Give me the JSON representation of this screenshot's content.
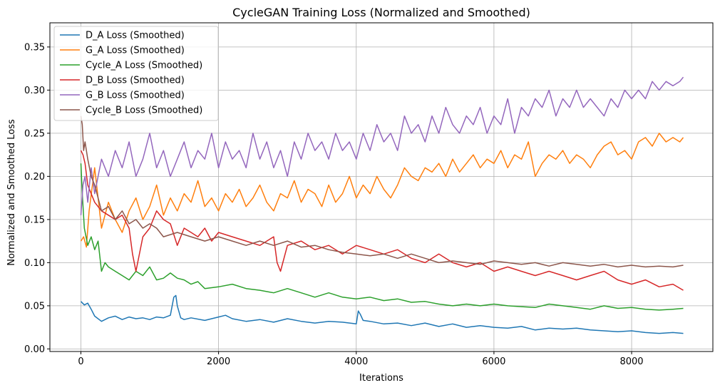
{
  "chart_data": {
    "type": "line",
    "title": "CycleGAN Training Loss (Normalized and Smoothed)",
    "xlabel": "Iterations",
    "ylabel": "Normalized and Smoothed Loss",
    "xlim": [
      -450,
      9180
    ],
    "ylim": [
      -0.003,
      0.378
    ],
    "x_ticks": [
      0,
      2000,
      4000,
      6000,
      8000
    ],
    "y_ticks": [
      0.0,
      0.05,
      0.1,
      0.15,
      0.2,
      0.25,
      0.3,
      0.35
    ],
    "x_tick_labels": [
      "0",
      "2000",
      "4000",
      "6000",
      "8000"
    ],
    "y_tick_labels": [
      "0.00",
      "0.05",
      "0.10",
      "0.15",
      "0.20",
      "0.25",
      "0.30",
      "0.35"
    ],
    "grid": true,
    "legend_position": "top-left",
    "series": [
      {
        "name": "D_A Loss (Smoothed)",
        "color": "#1f77b4",
        "x": [
          0,
          50,
          100,
          150,
          200,
          300,
          400,
          500,
          600,
          700,
          800,
          900,
          1000,
          1100,
          1200,
          1300,
          1350,
          1380,
          1400,
          1450,
          1500,
          1600,
          1800,
          2000,
          2100,
          2200,
          2400,
          2600,
          2800,
          3000,
          3200,
          3400,
          3600,
          3800,
          4000,
          4030,
          4060,
          4100,
          4200,
          4400,
          4600,
          4800,
          5000,
          5200,
          5400,
          5600,
          5800,
          6000,
          6200,
          6400,
          6600,
          6800,
          7000,
          7200,
          7400,
          7600,
          7800,
          8000,
          8200,
          8400,
          8600,
          8750
        ],
        "y": [
          0.055,
          0.051,
          0.053,
          0.046,
          0.038,
          0.032,
          0.036,
          0.038,
          0.034,
          0.037,
          0.035,
          0.036,
          0.034,
          0.037,
          0.036,
          0.039,
          0.06,
          0.062,
          0.05,
          0.036,
          0.034,
          0.036,
          0.033,
          0.037,
          0.039,
          0.035,
          0.032,
          0.034,
          0.031,
          0.035,
          0.032,
          0.03,
          0.032,
          0.031,
          0.029,
          0.044,
          0.04,
          0.033,
          0.032,
          0.029,
          0.03,
          0.027,
          0.03,
          0.026,
          0.029,
          0.025,
          0.027,
          0.025,
          0.024,
          0.026,
          0.022,
          0.024,
          0.023,
          0.024,
          0.022,
          0.021,
          0.02,
          0.021,
          0.019,
          0.018,
          0.019,
          0.018
        ]
      },
      {
        "name": "G_A Loss (Smoothed)",
        "color": "#ff7f0e",
        "x": [
          0,
          40,
          80,
          120,
          200,
          300,
          400,
          500,
          600,
          700,
          800,
          900,
          1000,
          1100,
          1200,
          1300,
          1400,
          1500,
          1600,
          1700,
          1800,
          1900,
          2000,
          2100,
          2200,
          2300,
          2400,
          2500,
          2600,
          2700,
          2800,
          2900,
          3000,
          3100,
          3200,
          3300,
          3400,
          3500,
          3600,
          3700,
          3800,
          3900,
          4000,
          4100,
          4200,
          4300,
          4400,
          4500,
          4600,
          4700,
          4800,
          4900,
          5000,
          5100,
          5200,
          5300,
          5400,
          5500,
          5600,
          5700,
          5800,
          5900,
          6000,
          6100,
          6200,
          6300,
          6400,
          6500,
          6600,
          6700,
          6800,
          6900,
          7000,
          7100,
          7200,
          7300,
          7400,
          7500,
          7600,
          7700,
          7800,
          7900,
          8000,
          8100,
          8200,
          8300,
          8400,
          8500,
          8600,
          8700,
          8750
        ],
        "y": [
          0.125,
          0.13,
          0.118,
          0.16,
          0.21,
          0.14,
          0.17,
          0.15,
          0.135,
          0.16,
          0.175,
          0.15,
          0.165,
          0.19,
          0.155,
          0.175,
          0.16,
          0.18,
          0.17,
          0.195,
          0.165,
          0.175,
          0.16,
          0.18,
          0.17,
          0.185,
          0.165,
          0.175,
          0.19,
          0.17,
          0.16,
          0.18,
          0.175,
          0.195,
          0.17,
          0.185,
          0.18,
          0.165,
          0.19,
          0.17,
          0.18,
          0.2,
          0.175,
          0.19,
          0.18,
          0.2,
          0.185,
          0.175,
          0.19,
          0.21,
          0.2,
          0.195,
          0.21,
          0.205,
          0.215,
          0.2,
          0.22,
          0.205,
          0.215,
          0.225,
          0.21,
          0.22,
          0.215,
          0.23,
          0.21,
          0.225,
          0.22,
          0.24,
          0.2,
          0.215,
          0.225,
          0.22,
          0.23,
          0.215,
          0.225,
          0.22,
          0.21,
          0.225,
          0.235,
          0.24,
          0.225,
          0.23,
          0.22,
          0.24,
          0.245,
          0.235,
          0.25,
          0.24,
          0.245,
          0.24,
          0.245
        ]
      },
      {
        "name": "Cycle_A Loss (Smoothed)",
        "color": "#2ca02c",
        "x": [
          0,
          20,
          50,
          100,
          150,
          200,
          250,
          300,
          350,
          400,
          500,
          600,
          700,
          800,
          900,
          1000,
          1100,
          1200,
          1300,
          1400,
          1500,
          1600,
          1700,
          1800,
          2000,
          2200,
          2400,
          2600,
          2800,
          3000,
          3200,
          3400,
          3600,
          3800,
          4000,
          4200,
          4400,
          4600,
          4800,
          5000,
          5200,
          5400,
          5600,
          5800,
          6000,
          6200,
          6400,
          6600,
          6800,
          7000,
          7200,
          7400,
          7600,
          7800,
          8000,
          8200,
          8400,
          8600,
          8750
        ],
        "y": [
          0.215,
          0.18,
          0.14,
          0.12,
          0.13,
          0.115,
          0.125,
          0.09,
          0.1,
          0.095,
          0.09,
          0.085,
          0.08,
          0.09,
          0.085,
          0.095,
          0.08,
          0.082,
          0.088,
          0.082,
          0.08,
          0.075,
          0.078,
          0.07,
          0.072,
          0.075,
          0.07,
          0.068,
          0.065,
          0.07,
          0.065,
          0.06,
          0.065,
          0.06,
          0.058,
          0.06,
          0.056,
          0.058,
          0.054,
          0.055,
          0.052,
          0.05,
          0.052,
          0.05,
          0.052,
          0.05,
          0.049,
          0.048,
          0.052,
          0.05,
          0.048,
          0.046,
          0.05,
          0.047,
          0.048,
          0.046,
          0.045,
          0.046,
          0.047
        ]
      },
      {
        "name": "D_B Loss (Smoothed)",
        "color": "#d62728",
        "x": [
          0,
          30,
          60,
          100,
          150,
          200,
          300,
          400,
          500,
          600,
          700,
          750,
          800,
          900,
          1000,
          1100,
          1200,
          1300,
          1400,
          1500,
          1600,
          1700,
          1800,
          1900,
          2000,
          2200,
          2400,
          2600,
          2800,
          2850,
          2900,
          3000,
          3200,
          3400,
          3600,
          3800,
          4000,
          4200,
          4400,
          4600,
          4800,
          5000,
          5200,
          5400,
          5600,
          5800,
          6000,
          6200,
          6400,
          6600,
          6800,
          7000,
          7200,
          7400,
          7600,
          7800,
          8000,
          8200,
          8400,
          8600,
          8750
        ],
        "y": [
          0.23,
          0.225,
          0.215,
          0.19,
          0.18,
          0.17,
          0.16,
          0.155,
          0.15,
          0.155,
          0.14,
          0.11,
          0.09,
          0.13,
          0.14,
          0.16,
          0.15,
          0.145,
          0.12,
          0.14,
          0.135,
          0.13,
          0.14,
          0.125,
          0.135,
          0.13,
          0.125,
          0.12,
          0.13,
          0.1,
          0.09,
          0.12,
          0.125,
          0.115,
          0.12,
          0.11,
          0.12,
          0.115,
          0.11,
          0.115,
          0.105,
          0.1,
          0.11,
          0.1,
          0.095,
          0.1,
          0.09,
          0.095,
          0.09,
          0.085,
          0.09,
          0.085,
          0.08,
          0.085,
          0.09,
          0.08,
          0.075,
          0.08,
          0.072,
          0.075,
          0.068
        ]
      },
      {
        "name": "G_B Loss (Smoothed)",
        "color": "#9467bd",
        "x": [
          0,
          30,
          60,
          100,
          150,
          200,
          300,
          400,
          500,
          600,
          700,
          800,
          900,
          1000,
          1100,
          1200,
          1300,
          1400,
          1500,
          1600,
          1700,
          1800,
          1900,
          2000,
          2100,
          2200,
          2300,
          2400,
          2500,
          2600,
          2700,
          2800,
          2900,
          3000,
          3100,
          3200,
          3300,
          3400,
          3500,
          3600,
          3700,
          3800,
          3900,
          4000,
          4100,
          4200,
          4300,
          4400,
          4500,
          4600,
          4700,
          4800,
          4900,
          5000,
          5100,
          5200,
          5300,
          5400,
          5500,
          5600,
          5700,
          5800,
          5900,
          6000,
          6100,
          6200,
          6300,
          6400,
          6500,
          6600,
          6700,
          6800,
          6900,
          7000,
          7100,
          7200,
          7300,
          7400,
          7500,
          7600,
          7700,
          7800,
          7900,
          8000,
          8100,
          8200,
          8300,
          8400,
          8500,
          8600,
          8700,
          8750
        ],
        "y": [
          0.155,
          0.19,
          0.2,
          0.17,
          0.21,
          0.18,
          0.22,
          0.2,
          0.23,
          0.21,
          0.24,
          0.2,
          0.22,
          0.25,
          0.21,
          0.23,
          0.2,
          0.22,
          0.24,
          0.21,
          0.23,
          0.22,
          0.25,
          0.21,
          0.24,
          0.22,
          0.23,
          0.21,
          0.25,
          0.22,
          0.24,
          0.21,
          0.23,
          0.2,
          0.24,
          0.22,
          0.25,
          0.23,
          0.24,
          0.22,
          0.25,
          0.23,
          0.24,
          0.22,
          0.25,
          0.23,
          0.26,
          0.24,
          0.25,
          0.23,
          0.27,
          0.25,
          0.26,
          0.24,
          0.27,
          0.25,
          0.28,
          0.26,
          0.25,
          0.27,
          0.26,
          0.28,
          0.25,
          0.27,
          0.26,
          0.29,
          0.25,
          0.28,
          0.27,
          0.29,
          0.28,
          0.3,
          0.27,
          0.29,
          0.28,
          0.3,
          0.28,
          0.29,
          0.28,
          0.27,
          0.29,
          0.28,
          0.3,
          0.29,
          0.3,
          0.29,
          0.31,
          0.3,
          0.31,
          0.305,
          0.31,
          0.315
        ]
      },
      {
        "name": "Cycle_B Loss (Smoothed)",
        "color": "#8c564b",
        "x": [
          0,
          20,
          40,
          60,
          100,
          150,
          200,
          250,
          300,
          400,
          500,
          600,
          700,
          800,
          900,
          1000,
          1100,
          1200,
          1400,
          1600,
          1800,
          2000,
          2200,
          2400,
          2600,
          2800,
          3000,
          3200,
          3400,
          3600,
          3800,
          4000,
          4200,
          4400,
          4600,
          4800,
          5000,
          5200,
          5400,
          5600,
          5800,
          6000,
          6200,
          6400,
          6600,
          6800,
          7000,
          7200,
          7400,
          7600,
          7800,
          8000,
          8200,
          8400,
          8600,
          8750
        ],
        "y": [
          0.27,
          0.26,
          0.23,
          0.24,
          0.22,
          0.2,
          0.19,
          0.175,
          0.16,
          0.165,
          0.15,
          0.16,
          0.145,
          0.15,
          0.14,
          0.145,
          0.14,
          0.13,
          0.135,
          0.13,
          0.125,
          0.13,
          0.125,
          0.12,
          0.125,
          0.12,
          0.125,
          0.118,
          0.12,
          0.115,
          0.112,
          0.11,
          0.108,
          0.11,
          0.105,
          0.11,
          0.105,
          0.1,
          0.102,
          0.1,
          0.098,
          0.102,
          0.1,
          0.098,
          0.1,
          0.096,
          0.1,
          0.098,
          0.096,
          0.098,
          0.095,
          0.097,
          0.095,
          0.096,
          0.095,
          0.097
        ]
      }
    ]
  }
}
